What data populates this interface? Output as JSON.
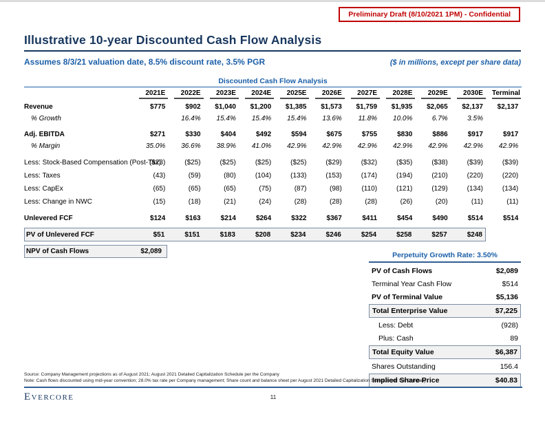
{
  "banner": {
    "text": "Preliminary Draft (8/10/2021 1PM) - Confidential"
  },
  "header": {
    "title": "Illustrative 10-year Discounted Cash Flow Analysis",
    "subtitle": "Assumes 8/3/21 valuation date, 8.5% discount rate, 3.5% PGR",
    "units_note": "($ in millions, except per share data)"
  },
  "colors": {
    "accent_red": "#c00000",
    "title_navy": "#17365d",
    "accent_blue": "#1b5fa8",
    "box_border": "#7b8ca3",
    "box_fill": "#f1f1f1"
  },
  "dcf_table": {
    "caption": "Discounted Cash Flow Analysis",
    "columns": [
      "2021E",
      "2022E",
      "2023E",
      "2024E",
      "2025E",
      "2026E",
      "2027E",
      "2028E",
      "2029E",
      "2030E",
      "Terminal"
    ],
    "rows": [
      {
        "label": "Revenue",
        "style": "bold",
        "values": [
          "$775",
          "$902",
          "$1,040",
          "$1,200",
          "$1,385",
          "$1,573",
          "$1,759",
          "$1,935",
          "$2,065",
          "$2,137",
          "$2,137"
        ]
      },
      {
        "label": "% Growth",
        "style": "pct",
        "values": [
          "",
          "16.4%",
          "15.4%",
          "15.4%",
          "15.4%",
          "13.6%",
          "11.8%",
          "10.0%",
          "6.7%",
          "3.5%",
          ""
        ]
      },
      {
        "spacer": true
      },
      {
        "label": "Adj. EBITDA",
        "style": "bold",
        "values": [
          "$271",
          "$330",
          "$404",
          "$492",
          "$594",
          "$675",
          "$755",
          "$830",
          "$886",
          "$917",
          "$917"
        ]
      },
      {
        "label": "% Margin",
        "style": "pct",
        "values": [
          "35.0%",
          "36.6%",
          "38.9%",
          "41.0%",
          "42.9%",
          "42.9%",
          "42.9%",
          "42.9%",
          "42.9%",
          "42.9%",
          "42.9%"
        ]
      },
      {
        "spacer": true
      },
      {
        "label": "Less: Stock-Based Compensation (Post-Tax)",
        "style": "less",
        "values": [
          "($23)",
          "($25)",
          "($25)",
          "($25)",
          "($25)",
          "($29)",
          "($32)",
          "($35)",
          "($38)",
          "($39)",
          "($39)"
        ]
      },
      {
        "label": "Less: Taxes",
        "style": "less",
        "values": [
          "(43)",
          "(59)",
          "(80)",
          "(104)",
          "(133)",
          "(153)",
          "(174)",
          "(194)",
          "(210)",
          "(220)",
          "(220)"
        ]
      },
      {
        "label": "Less: CapEx",
        "style": "less",
        "values": [
          "(65)",
          "(65)",
          "(65)",
          "(75)",
          "(87)",
          "(98)",
          "(110)",
          "(121)",
          "(129)",
          "(134)",
          "(134)"
        ]
      },
      {
        "label": "Less: Change in NWC",
        "style": "less",
        "values": [
          "(15)",
          "(18)",
          "(21)",
          "(24)",
          "(28)",
          "(28)",
          "(28)",
          "(26)",
          "(20)",
          "(11)",
          "(11)"
        ]
      },
      {
        "spacer": true
      },
      {
        "label": "Unlevered FCF",
        "style": "bold",
        "values": [
          "$124",
          "$163",
          "$214",
          "$264",
          "$322",
          "$367",
          "$411",
          "$454",
          "$490",
          "$514",
          "$514"
        ]
      },
      {
        "gap": true
      },
      {
        "label": "PV of Unlevered FCF",
        "style": "boxed",
        "values": [
          "$51",
          "$151",
          "$183",
          "$208",
          "$234",
          "$246",
          "$254",
          "$258",
          "$257",
          "$248"
        ]
      },
      {
        "gap": true
      },
      {
        "label": "NPV of Cash Flows",
        "style": "boxed-npv",
        "values": [
          "$2,089"
        ]
      }
    ]
  },
  "summary": {
    "caption": "Perpetuity Growth Rate: 3.50%",
    "rows": [
      {
        "label": "PV of Cash Flows",
        "value": "$2,089",
        "style": "bold"
      },
      {
        "label": "Terminal Year Cash Flow",
        "value": "$514",
        "style": "plain"
      },
      {
        "label": "PV of Terminal Value",
        "value": "$5,136",
        "style": "bold"
      },
      {
        "label": "Total Enterprise Value",
        "value": "$7,225",
        "style": "boxed"
      },
      {
        "label": "Less: Debt",
        "value": "(928)",
        "style": "indent"
      },
      {
        "label": "Plus: Cash",
        "value": "89",
        "style": "indent"
      },
      {
        "label": "Total Equity Value",
        "value": "$6,387",
        "style": "boxed"
      },
      {
        "label": "Shares Outstanding",
        "value": "156.4",
        "style": "plain"
      },
      {
        "label": "Implied Share Price",
        "value": "$40.83",
        "style": "boxed"
      }
    ]
  },
  "footer": {
    "source": "Source: Company Management projections as of August 2021; August 2021 Detailed Capitalization Schedule per the Company",
    "note": "Note: Cash flows discounted using mid-year convention; 28.0% tax rate per Company management; Share count and balance sheet per August 2021 Detailed Capitalization Schedule per the Company",
    "logo": "Evercore",
    "page_number": "11"
  }
}
